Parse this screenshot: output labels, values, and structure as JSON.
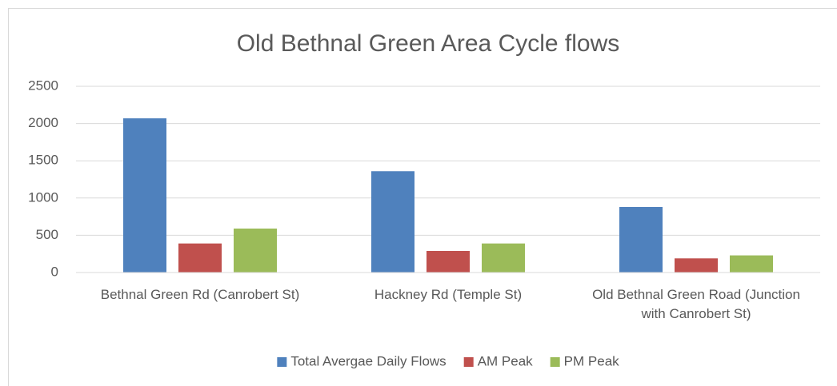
{
  "chart_data": {
    "type": "bar",
    "title": "Old Bethnal Green Area Cycle flows",
    "categories": [
      "Bethnal Green Rd (Canrobert St)",
      "Hackney Rd (Temple St)",
      "Old Bethnal Green Road (Junction with Canrobert St)"
    ],
    "series": [
      {
        "name": "Total Avergae Daily Flows",
        "color": "#4f81bd",
        "values": [
          2070,
          1360,
          880
        ]
      },
      {
        "name": "AM Peak",
        "color": "#c0504d",
        "values": [
          390,
          290,
          190
        ]
      },
      {
        "name": "PM Peak",
        "color": "#9bbb59",
        "values": [
          590,
          390,
          230
        ]
      }
    ],
    "ylim": [
      0,
      2500
    ],
    "yticks": [
      0,
      500,
      1000,
      1500,
      2000,
      2500
    ],
    "grid": true,
    "legend": "bottom"
  }
}
